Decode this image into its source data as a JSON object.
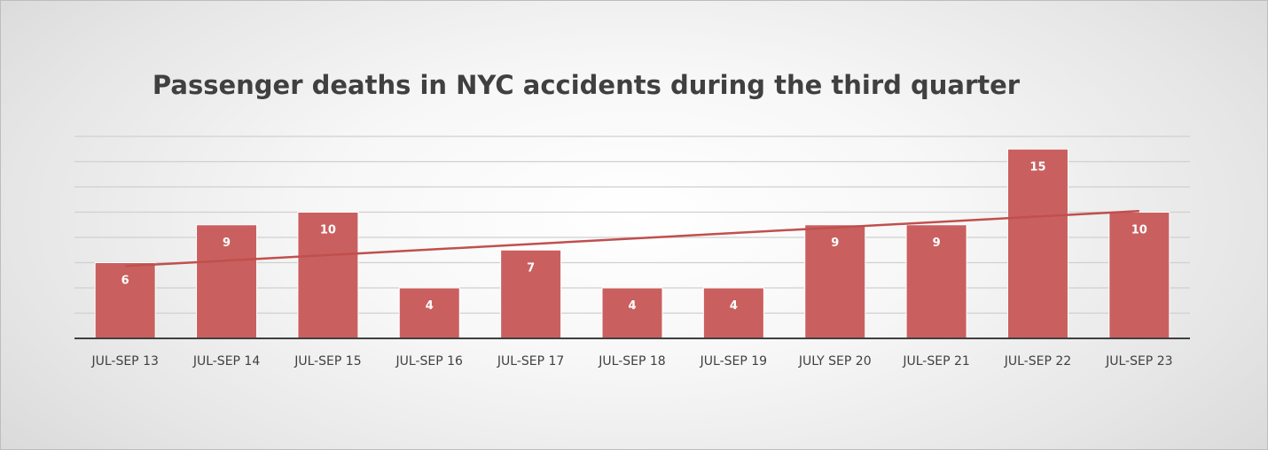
{
  "chart_data": {
    "type": "bar",
    "title": "Passenger deaths in NYC accidents during the third quarter",
    "xlabel": "",
    "ylabel": "",
    "categories": [
      "JUL-SEP 13",
      "JUL-SEP 14",
      "JUL-SEP 15",
      "JUL-SEP 16",
      "JUL-SEP 17",
      "JUL-SEP 18",
      "JUL-SEP 19",
      "JULY SEP 20",
      "JUL-SEP 21",
      "JUL-SEP 22",
      "JUL-SEP 23"
    ],
    "values": [
      6,
      9,
      10,
      4,
      7,
      4,
      4,
      9,
      9,
      15,
      10
    ],
    "ylim": [
      0,
      16
    ],
    "grid": true,
    "y_tick_labels_shown": false,
    "data_labels": true,
    "trendline": "linear",
    "colors": {
      "bar": "#c9605f",
      "bar_border": "#ffffff",
      "trendline": "#c0504d",
      "gridline": "#d0d0d0",
      "axis": "#404040"
    }
  }
}
